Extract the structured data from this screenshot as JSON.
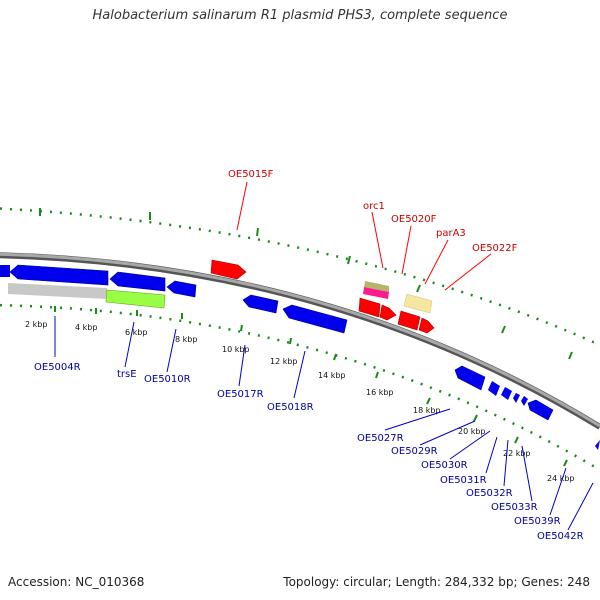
{
  "title": "Halobacterium salinarum R1 plasmid PHS3, complete sequence",
  "footer": {
    "accession": "Accession: NC_010368",
    "summary": "Topology: circular; Length: 284,332 bp; Genes: 248"
  },
  "colors": {
    "red": "#ff0000",
    "blue": "#0000ee",
    "blue_label": "#00009a",
    "red_label": "#cc0000",
    "green_tick": "#1a8a1a",
    "backbone": "#888888",
    "pseudo": "#c8c8c8",
    "lime": "#99ff44",
    "pink": "#ff1a8c",
    "olive": "#b5b56a",
    "yellow": "#f5e6a0"
  },
  "kbp_labels": [
    "2 kbp",
    "4 kbp",
    "6 kbp",
    "8 kbp",
    "10 kbp",
    "12 kbp",
    "14 kbp",
    "16 kbp",
    "18 kbp",
    "20 kbp",
    "22 kbp",
    "24 kbp"
  ],
  "red_labels": [
    "OE5015F",
    "orc1",
    "OE5020F",
    "parA3",
    "OE5022F"
  ],
  "blue_labels": [
    "OE5004R",
    "trsE",
    "OE5010R",
    "OE5017R",
    "OE5018R",
    "OE5027R",
    "OE5029R",
    "OE5030R",
    "OE5031R",
    "OE5032R",
    "OE5033R",
    "OE5039R",
    "OE5042R"
  ]
}
